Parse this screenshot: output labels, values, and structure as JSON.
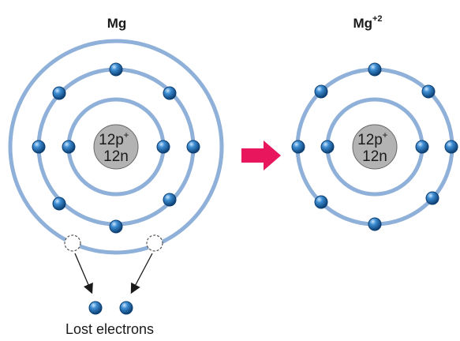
{
  "colors": {
    "shell": "#8fb0d8",
    "nucleus_fill": "#b3b3b3",
    "electron": "#1f6fb2",
    "electron_dark": "#0d3f73",
    "arrow": "#e8175d",
    "text": "#1a1a1a"
  },
  "left_atom": {
    "title": "Mg",
    "nucleus_protons": "12p",
    "nucleus_plus": "+",
    "nucleus_neutrons": "12n",
    "shell_electron_counts": [
      2,
      8,
      2
    ],
    "missing_electrons_label": "dashed-empty-sites"
  },
  "right_atom": {
    "title": "Mg",
    "charge": "+2",
    "nucleus_protons": "12p",
    "nucleus_plus": "+",
    "nucleus_neutrons": "12n",
    "shell_electron_counts": [
      2,
      8
    ]
  },
  "transition_arrow": "right-arrow-icon",
  "lost_electrons": {
    "count": 2,
    "label": "Lost electrons"
  }
}
